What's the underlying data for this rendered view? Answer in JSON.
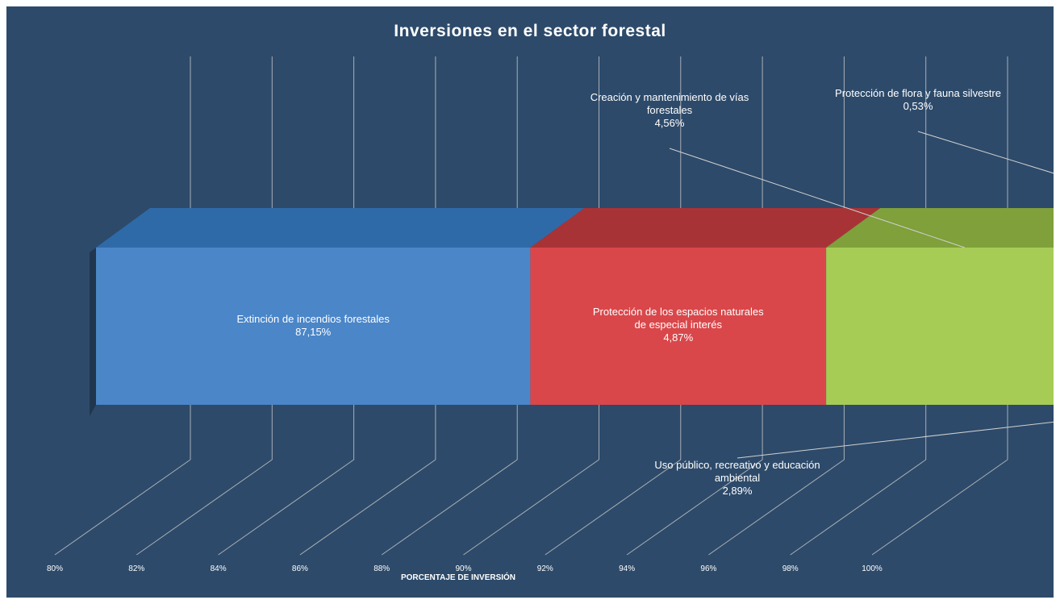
{
  "chart_data": {
    "type": "bar",
    "orientation": "horizontal",
    "stacked": true,
    "three_d": true,
    "title": "Inversiones en el sector forestal",
    "xlabel": "PORCENTAJE DE INVERSIÓN",
    "xlim": [
      80,
      102
    ],
    "x_ticks": [
      "80%",
      "82%",
      "84%",
      "86%",
      "88%",
      "90%",
      "92%",
      "94%",
      "96%",
      "98%",
      "100%"
    ],
    "x_tick_values": [
      80,
      82,
      84,
      86,
      88,
      90,
      92,
      94,
      96,
      98,
      100
    ],
    "grid": true,
    "legend": "none",
    "series": [
      {
        "name": "Extinción de incendios forestales",
        "label_lines": [
          "Extinción de incendios forestales"
        ],
        "value": 87.15,
        "value_label": "87,15%",
        "color": "#4a86c8",
        "top_color": "#2f6aa8"
      },
      {
        "name": "Protección de los espacios naturales de especial interés",
        "label_lines": [
          "Protección de los espacios naturales",
          "de especial interés"
        ],
        "value": 4.87,
        "value_label": "4,87%",
        "color": "#d9474a",
        "top_color": "#a83336"
      },
      {
        "name": "Creación y mantenimiento de vías forestales",
        "label_lines": [
          "Creación y mantenimiento de vías",
          "forestales"
        ],
        "value": 4.56,
        "value_label": "4,56%",
        "color": "#a6cc55",
        "top_color": "#7fa03a"
      },
      {
        "name": "Uso público, recreativo y educación ambiental",
        "label_lines": [
          "Uso público, recreativo y educación",
          "ambiental"
        ],
        "value": 2.89,
        "value_label": "2,89%",
        "color": "#8a62a8",
        "top_color": "#6a4a88"
      },
      {
        "name": "Protección de flora y fauna silvestre",
        "label_lines": [
          "Protección de flora y fauna silvestre"
        ],
        "value": 0.53,
        "value_label": "0,53%",
        "color": "#3ec4e0",
        "top_color": "#2ba0bb"
      }
    ]
  }
}
